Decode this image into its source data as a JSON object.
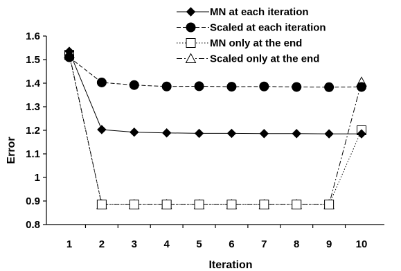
{
  "chart_data": {
    "type": "line",
    "title": "",
    "xlabel": "Iteration",
    "ylabel": "Error",
    "x": [
      1,
      2,
      3,
      4,
      5,
      6,
      7,
      8,
      9,
      10
    ],
    "ylim": [
      0.8,
      1.6
    ],
    "yticks": [
      0.8,
      0.9,
      1,
      1.1,
      1.2,
      1.3,
      1.4,
      1.5,
      1.6
    ],
    "ytick_labels": [
      "0.8",
      "0.9",
      "1",
      "1.1",
      "1.2",
      "1.3",
      "1.4",
      "1.5",
      "1.6"
    ],
    "xtick_labels": [
      "1",
      "2",
      "3",
      "4",
      "5",
      "6",
      "7",
      "8",
      "9",
      "10"
    ],
    "grid": false,
    "legend_position": "top-right",
    "series": [
      {
        "name": "MN at each iteration",
        "marker": "diamond-filled",
        "line": "solid",
        "values": [
          1.535,
          1.203,
          1.192,
          1.189,
          1.187,
          1.187,
          1.186,
          1.186,
          1.185,
          1.185
        ]
      },
      {
        "name": "Scaled at each iteration",
        "marker": "circle-filled",
        "line": "dashed",
        "values": [
          1.51,
          1.403,
          1.392,
          1.386,
          1.387,
          1.385,
          1.386,
          1.384,
          1.383,
          1.384
        ]
      },
      {
        "name": "MN only at the end",
        "marker": "square-open",
        "line": "dotted",
        "values": [
          1.52,
          0.885,
          0.885,
          0.885,
          0.885,
          0.885,
          0.885,
          0.885,
          0.885,
          1.2
        ]
      },
      {
        "name": "Scaled only at the end",
        "marker": "triangle-open",
        "line": "dashdot",
        "values": [
          1.525,
          0.885,
          0.885,
          0.885,
          0.885,
          0.885,
          0.885,
          0.885,
          0.885,
          1.405
        ]
      }
    ]
  }
}
